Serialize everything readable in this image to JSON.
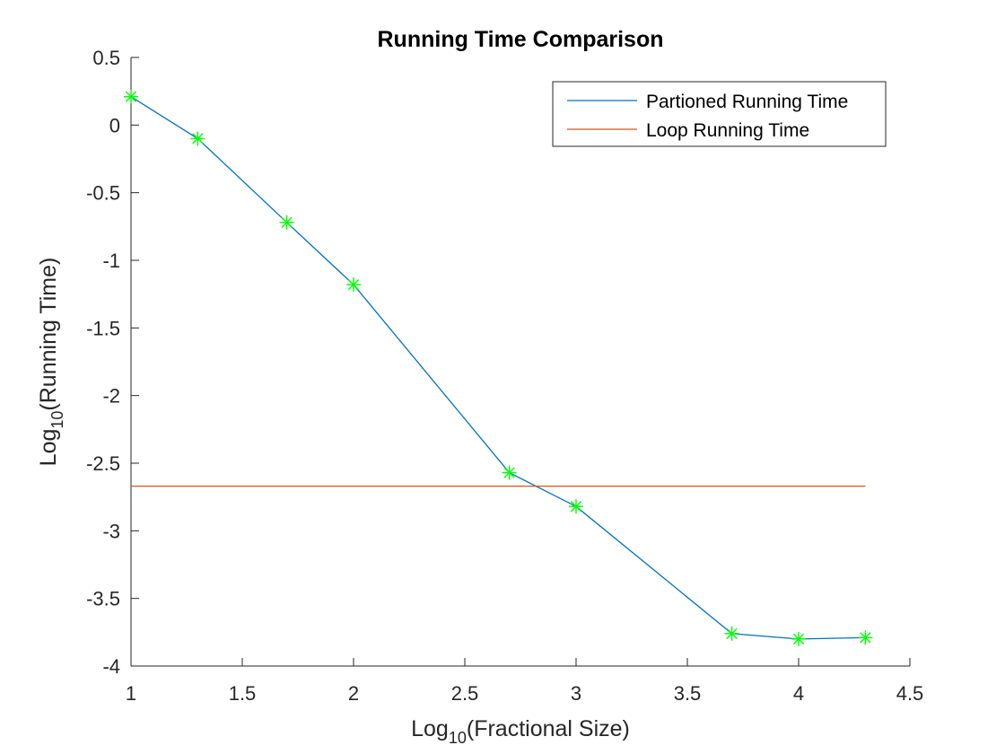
{
  "chart_data": {
    "type": "line",
    "title": "Running Time Comparison",
    "xlabel": {
      "base": "Log",
      "sub": "10",
      "rest": "(Fractional Size)"
    },
    "ylabel": {
      "base": "Log",
      "sub": "10",
      "rest": "(Running Time)"
    },
    "xlim": [
      1,
      4.5
    ],
    "ylim": [
      -4,
      0.5
    ],
    "xticks": [
      1,
      1.5,
      2,
      2.5,
      3,
      3.5,
      4,
      4.5
    ],
    "xtick_labels": [
      "1",
      "1.5",
      "2",
      "2.5",
      "3",
      "3.5",
      "4",
      "4.5"
    ],
    "yticks": [
      0.5,
      0,
      -0.5,
      -1,
      -1.5,
      -2,
      -2.5,
      -3,
      -3.5,
      -4
    ],
    "ytick_labels": [
      "0.5",
      "0",
      "-0.5",
      "-1",
      "-1.5",
      "-2",
      "-2.5",
      "-3",
      "-3.5",
      "-4"
    ],
    "grid": false,
    "legend_position": "top-right",
    "series": [
      {
        "name": "Partioned Running Time",
        "color": "#0072BD",
        "marker": "asterisk",
        "marker_color": "#00FF00",
        "x": [
          1,
          1.3,
          1.7,
          2,
          2.7,
          3,
          3.7,
          4,
          4.3
        ],
        "y": [
          0.21,
          -0.1,
          -0.72,
          -1.18,
          -2.57,
          -2.82,
          -3.76,
          -3.8,
          -3.79
        ]
      },
      {
        "name": "Loop Running Time",
        "color": "#D95319",
        "marker": "none",
        "x": [
          1,
          4.3
        ],
        "y": [
          -2.67,
          -2.67
        ]
      }
    ]
  }
}
